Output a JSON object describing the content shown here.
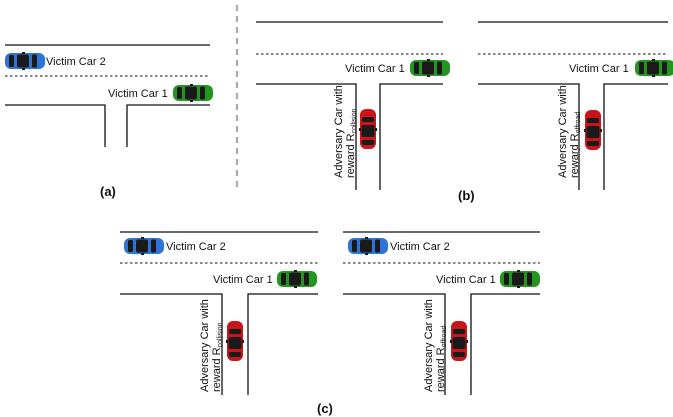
{
  "panels": {
    "a": {
      "caption": "(a)",
      "victim2": "Victim Car 2",
      "victim1": "Victim Car 1"
    },
    "b": {
      "caption": "(b)",
      "left": {
        "victim1": "Victim Car 1",
        "adv_line1": "Adversary Car with",
        "adv_line2": "reward R",
        "adv_sub": "collision"
      },
      "right": {
        "victim1": "Victim Car 1",
        "adv_line1": "Adversary Car with",
        "adv_line2": "reward R",
        "adv_sub": "offroad"
      }
    },
    "c": {
      "caption": "(c)",
      "left": {
        "victim2": "Victim Car 2",
        "victim1": "Victim Car 1",
        "adv_line1": "Adversary Car with",
        "adv_line2": "reward R",
        "adv_sub": "collision"
      },
      "right": {
        "victim2": "Victim Car 2",
        "victim1": "Victim Car 1",
        "adv_line1": "Adversary Car with",
        "adv_line2": "reward R",
        "adv_sub": "offroad"
      }
    }
  },
  "colors": {
    "victim1_car": "#22961e",
    "victim2_car": "#2f72d8",
    "adversary_car": "#c9141b",
    "window": "#1a1a1a",
    "divider": "#aaaaaa"
  }
}
